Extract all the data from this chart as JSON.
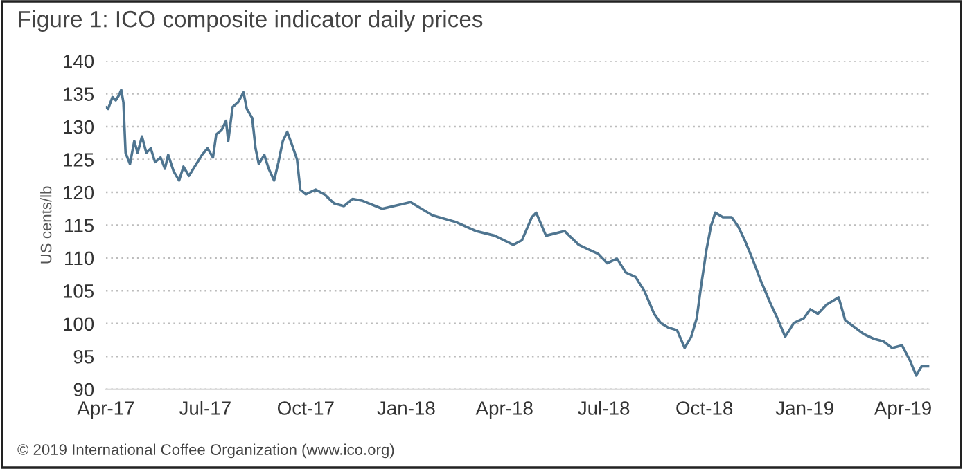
{
  "chart_data": {
    "type": "line",
    "title": "Figure 1: ICO composite indicator daily prices",
    "ylabel": "US cents/lb",
    "annotations": [
      "© 2019 International Coffee Organization (www.ico.org)"
    ],
    "x": [
      "2017-04-01",
      "2017-04-03",
      "2017-04-07",
      "2017-04-10",
      "2017-04-13",
      "2017-04-15",
      "2017-04-17",
      "2017-04-19",
      "2017-04-23",
      "2017-04-27",
      "2017-04-30",
      "2017-05-04",
      "2017-05-08",
      "2017-05-12",
      "2017-05-16",
      "2017-05-21",
      "2017-05-25",
      "2017-05-28",
      "2017-06-02",
      "2017-06-07",
      "2017-06-11",
      "2017-06-16",
      "2017-06-28",
      "2017-07-03",
      "2017-07-08",
      "2017-07-11",
      "2017-07-16",
      "2017-07-20",
      "2017-07-22",
      "2017-07-26",
      "2017-07-31",
      "2017-08-05",
      "2017-08-08",
      "2017-08-13",
      "2017-08-16",
      "2017-08-19",
      "2017-08-24",
      "2017-08-28",
      "2017-09-02",
      "2017-09-06",
      "2017-09-10",
      "2017-09-14",
      "2017-09-18",
      "2017-09-23",
      "2017-09-26",
      "2017-10-01",
      "2017-10-10",
      "2017-10-18",
      "2017-10-27",
      "2017-11-05",
      "2017-11-13",
      "2017-11-22",
      "2017-12-10",
      "2018-01-05",
      "2018-01-25",
      "2018-02-15",
      "2018-03-06",
      "2018-03-23",
      "2018-04-09",
      "2018-04-17",
      "2018-04-26",
      "2018-04-30",
      "2018-05-09",
      "2018-05-26",
      "2018-06-08",
      "2018-06-17",
      "2018-06-26",
      "2018-07-04",
      "2018-07-13",
      "2018-07-21",
      "2018-07-30",
      "2018-08-07",
      "2018-08-16",
      "2018-08-22",
      "2018-08-29",
      "2018-09-06",
      "2018-09-13",
      "2018-09-19",
      "2018-09-24",
      "2018-09-28",
      "2018-10-03",
      "2018-10-07",
      "2018-10-11",
      "2018-10-18",
      "2018-10-26",
      "2018-11-01",
      "2018-11-07",
      "2018-11-14",
      "2018-11-22",
      "2018-12-01",
      "2018-12-07",
      "2018-12-14",
      "2018-12-22",
      "2018-12-31",
      "2019-01-06",
      "2019-01-13",
      "2019-01-21",
      "2019-02-01",
      "2019-02-07",
      "2019-02-16",
      "2019-02-24",
      "2019-03-05",
      "2019-03-14",
      "2019-03-22",
      "2019-03-31",
      "2019-04-07",
      "2019-04-13",
      "2019-04-18",
      "2019-04-25"
    ],
    "series": [
      {
        "color": "#4f7590",
        "values": [
          133.0,
          132.7,
          134.5,
          134.0,
          134.8,
          135.6,
          133.7,
          126.0,
          124.3,
          127.8,
          126.0,
          128.5,
          126.0,
          126.7,
          124.6,
          125.3,
          123.6,
          125.7,
          123.2,
          121.8,
          123.9,
          122.5,
          125.7,
          126.7,
          125.3,
          128.8,
          129.5,
          130.9,
          127.8,
          133.0,
          133.7,
          135.2,
          132.7,
          131.3,
          126.7,
          124.3,
          125.7,
          123.6,
          121.8,
          124.6,
          127.8,
          129.2,
          127.4,
          125.0,
          120.4,
          119.7,
          120.4,
          119.7,
          118.3,
          117.9,
          119.0,
          118.7,
          117.5,
          118.5,
          116.5,
          115.5,
          114.1,
          113.4,
          112.0,
          112.7,
          116.2,
          116.9,
          113.4,
          114.1,
          112.0,
          111.3,
          110.6,
          109.2,
          109.9,
          107.8,
          107.1,
          105.0,
          101.5,
          100.1,
          99.4,
          99.0,
          96.3,
          98.0,
          100.8,
          105.7,
          111.3,
          114.8,
          116.9,
          116.2,
          116.2,
          114.8,
          112.7,
          109.9,
          106.4,
          102.9,
          100.8,
          98.0,
          100.1,
          100.8,
          102.2,
          101.5,
          102.9,
          104.0,
          100.5,
          99.4,
          98.4,
          97.7,
          97.3,
          96.3,
          96.7,
          94.5,
          92.1,
          93.5,
          93.5
        ]
      }
    ],
    "xlim": [
      "2017-04-01",
      "2019-04-25"
    ],
    "xticks": [
      {
        "value": "2017-04-01",
        "label": "Apr-17"
      },
      {
        "value": "2017-07-01",
        "label": "Jul-17"
      },
      {
        "value": "2017-10-01",
        "label": "Oct-17"
      },
      {
        "value": "2018-01-01",
        "label": "Jan-18"
      },
      {
        "value": "2018-04-01",
        "label": "Apr-18"
      },
      {
        "value": "2018-07-01",
        "label": "Jul-18"
      },
      {
        "value": "2018-10-01",
        "label": "Oct-18"
      },
      {
        "value": "2019-01-01",
        "label": "Jan-19"
      },
      {
        "value": "2019-04-01",
        "label": "Apr-19"
      }
    ],
    "ylim": [
      90,
      140
    ],
    "yticks": [
      90,
      95,
      100,
      105,
      110,
      115,
      120,
      125,
      130,
      135,
      140
    ],
    "grid": "y",
    "line_style": "solid",
    "marker": "none"
  }
}
